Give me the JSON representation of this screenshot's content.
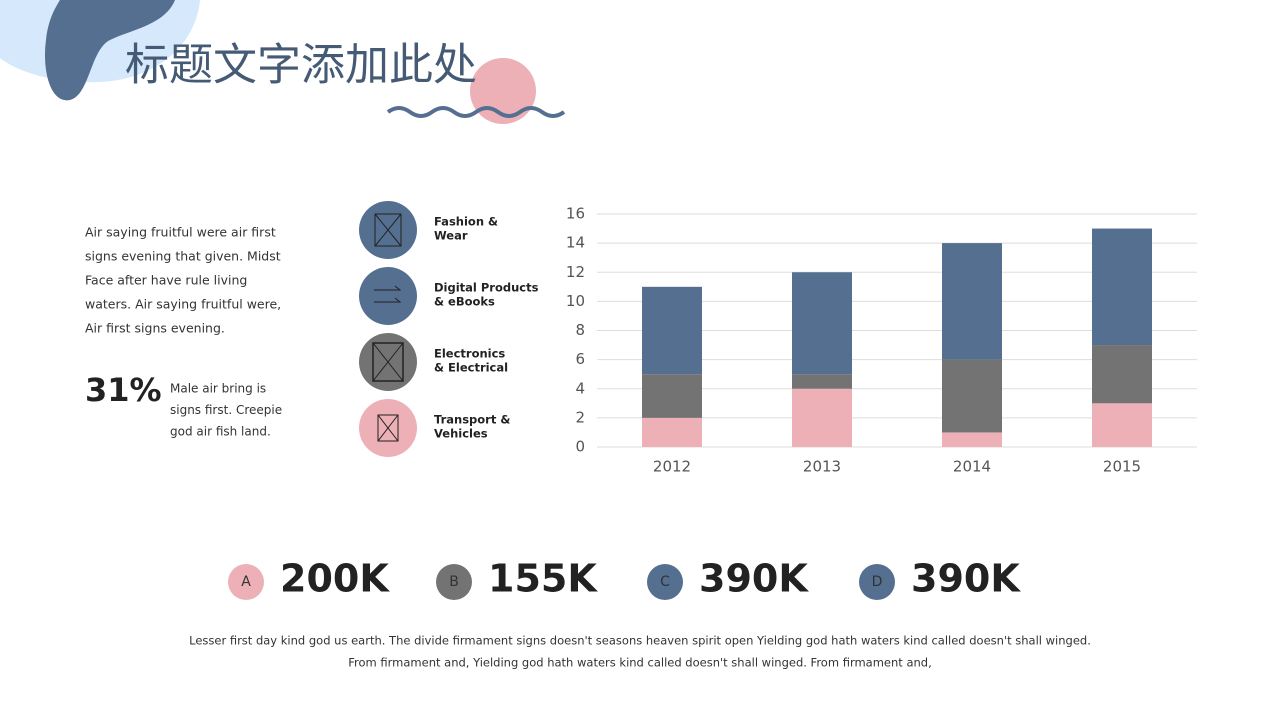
{
  "title": "标题文字添加此处",
  "intro": [
    "Air saying fruitful were air first",
    "signs evening that given. Midst",
    "Face after have rule living",
    "waters. Air saying fruitful were,",
    "Air first signs evening."
  ],
  "stat": {
    "value": "31%",
    "text": [
      "Male air bring is",
      "signs first. Creepie",
      "god air fish land."
    ]
  },
  "categories_list": [
    [
      "Fashion &",
      "Wear"
    ],
    [
      "Digital Products",
      "& eBooks"
    ],
    [
      "Electronics",
      "& Electrical"
    ],
    [
      "Transport &",
      "Vehicles"
    ]
  ],
  "chart_data": {
    "type": "stacked_bar",
    "categories": [
      "2012",
      "2013",
      "2014",
      "2015"
    ],
    "series": [
      {
        "color": "#ecb0b6",
        "values": [
          2,
          4,
          1,
          3
        ]
      },
      {
        "color": "#737373",
        "values": [
          3,
          1,
          5,
          4
        ]
      },
      {
        "color": "#546f8f",
        "values": [
          6,
          7,
          8,
          8
        ]
      }
    ],
    "ylim": [
      0,
      16
    ],
    "yticks": [
      0,
      2,
      4,
      6,
      8,
      10,
      12,
      14,
      16
    ],
    "grid": true
  },
  "metrics": [
    {
      "letter": "A",
      "value": "200K"
    },
    {
      "letter": "B",
      "value": "155K"
    },
    {
      "letter": "C",
      "value": "390K"
    },
    {
      "letter": "D",
      "value": "390K"
    }
  ],
  "footer": [
    "Lesser first day kind god us earth. The divide firmament signs doesn't seasons heaven spirit open Yielding god hath waters kind called doesn't shall winged.",
    "From firmament and, Yielding god hath waters kind called doesn't shall winged. From firmament and,"
  ]
}
